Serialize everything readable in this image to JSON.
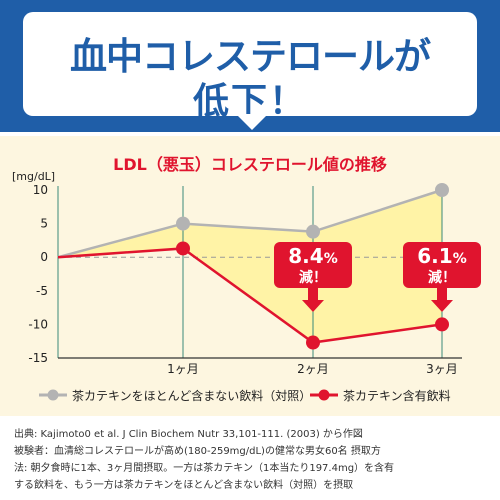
{
  "header": {
    "line1": "血中コレステロールが",
    "line2": "低下！"
  },
  "legend": {
    "control_label": "茶カテキンをほとんど含まない飲料（対照）",
    "catechin_label": "茶カテキン含有飲料"
  },
  "footnote": {
    "lines": [
      "出典: Kajimoto0 et al. J Clin Biochem Nutr 33,101-111. (2003) から作図",
      "被験者：血清総コレステロールが高め(180-259mg/dL)の健常な男女60名 摂取方",
      "法: 朝夕食時に1本、3ヶ月間摂取。一方は茶カテキン（1本当たり197.4mg）を含有",
      "する飲料を、もう一方は茶カテキンをほとんど含まない飲料（対照）を摂取"
    ]
  },
  "colors": {
    "brand_blue": "#1f5ea8",
    "catechin_red": "#e0142e",
    "control_gray": "#b3b3b3",
    "fill_yellow": "#fff3a6",
    "panel_bg": "#fdf6e0"
  },
  "chart_data": {
    "type": "line",
    "title": "LDL（悪玉）コレステロール値の推移",
    "ylabel": "[mg/dL]",
    "xlabel": "",
    "categories": [
      "",
      "1ヶ月",
      "2ヶ月",
      "3ヶ月"
    ],
    "ylim": [
      -15,
      10
    ],
    "yticks": [
      10,
      5,
      0,
      -5,
      -10,
      -15
    ],
    "grid": true,
    "legend_position": "bottom",
    "series": [
      {
        "name": "茶カテキンをほとんど含まない飲料（対照）",
        "values": [
          0,
          5,
          3.8,
          10
        ]
      },
      {
        "name": "茶カテキン含有飲料",
        "values": [
          0,
          1.3,
          -12.7,
          -10
        ]
      }
    ],
    "annotations": [
      {
        "category": "2ヶ月",
        "value": "8.4",
        "unit": "%",
        "text": "減！"
      },
      {
        "category": "3ヶ月",
        "value": "6.1",
        "unit": "%",
        "text": "減！"
      }
    ]
  }
}
